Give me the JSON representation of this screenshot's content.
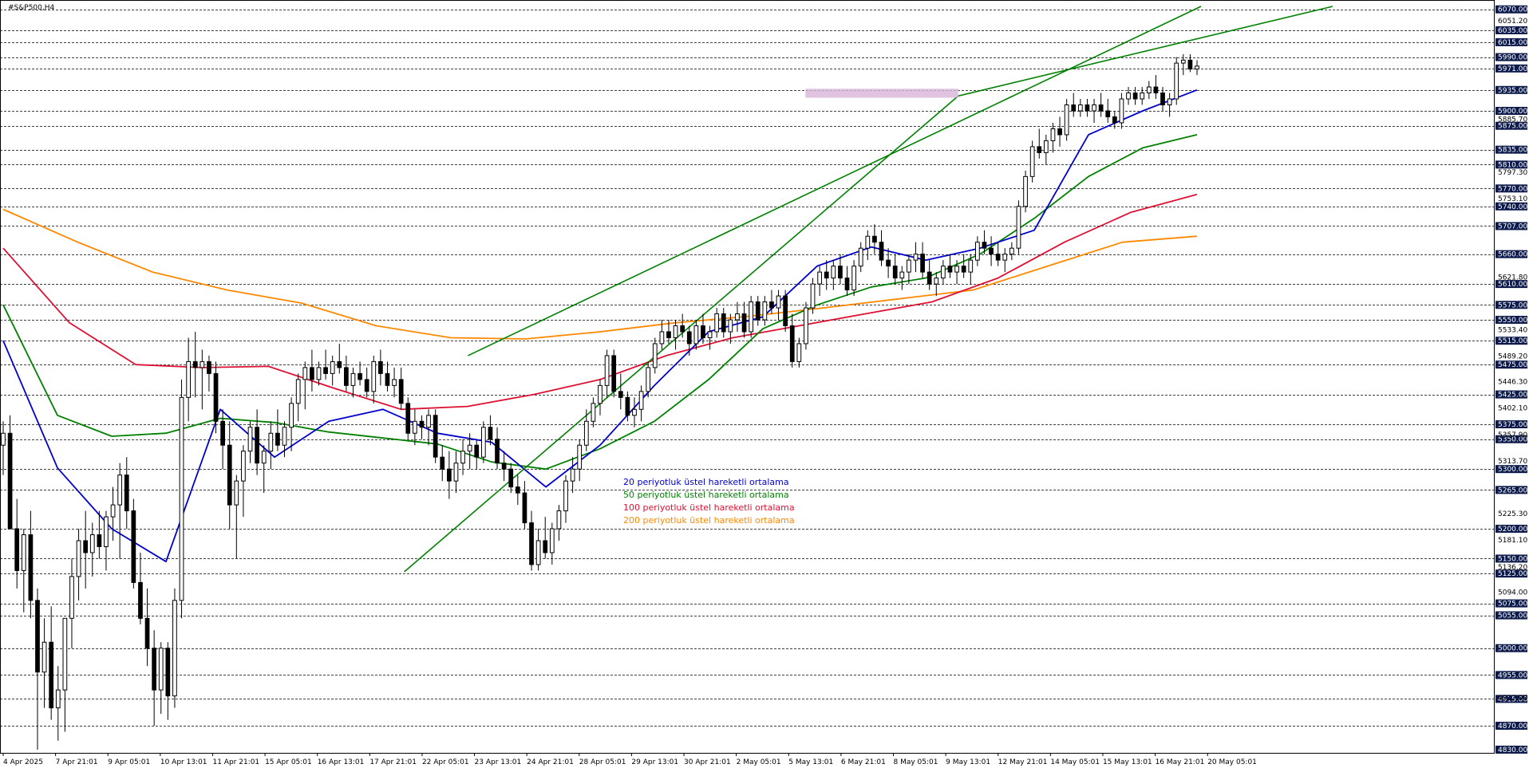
{
  "window": {
    "symbol_title": "#S&P500,H4"
  },
  "colors": {
    "background": "#ffffff",
    "grid": "#000000",
    "candle_up": "#ffffff",
    "candle_down": "#000000",
    "ema20": "#0000cc",
    "ema50": "#008000",
    "ema100": "#dd1133",
    "ema200": "#ff8800",
    "channel": "#008000",
    "zone": "#d8b4d8",
    "price_label_bg": "#0b1a4a",
    "price_label_text": "#ffffff"
  },
  "chart_data": {
    "type": "candlestick",
    "title": "#S&P500,H4",
    "ylim": [
      4830,
      6075
    ],
    "grid": true,
    "x_tick_labels": [
      "4 Apr 2025",
      "7 Apr 21:01",
      "9 Apr 05:01",
      "10 Apr 13:01",
      "11 Apr 21:01",
      "15 Apr 05:01",
      "16 Apr 13:01",
      "17 Apr 21:01",
      "22 Apr 05:01",
      "23 Apr 13:01",
      "24 Apr 21:01",
      "28 Apr 05:01",
      "29 Apr 13:01",
      "30 Apr 21:01",
      "2 May 05:01",
      "5 May 13:01",
      "6 May 21:01",
      "8 May 05:01",
      "9 May 13:01",
      "12 May 21:01",
      "14 May 05:01",
      "15 May 13:01",
      "16 May 21:01",
      "20 May 05:01"
    ],
    "y_tick_labels": [
      "6070.00",
      "6035.00",
      "6015.00",
      "5990.00",
      "5935.00",
      "5900.00",
      "5875.00",
      "5835.00",
      "5810.00",
      "5770.00",
      "5740.00",
      "5707.00",
      "5660.00",
      "5610.00",
      "5575.00",
      "5550.00",
      "5515.00",
      "5475.00",
      "5425.00",
      "5375.00",
      "5350.00",
      "5300.00",
      "5265.00",
      "5200.00",
      "5150.00",
      "5125.00",
      "5075.00",
      "5055.00",
      "5000.00",
      "4955.00",
      "4915.00",
      "4870.00",
      "4830.00"
    ],
    "highlighted_price_labels": [
      "6070.00",
      "6035.00",
      "6015.00",
      "5990.00",
      "5971.00",
      "5935.00",
      "5900.00",
      "5875.00",
      "5835.00",
      "5810.00",
      "5770.00",
      "5740.00",
      "5707.00",
      "5660.00",
      "5610.00",
      "5575.00",
      "5550.00",
      "5515.00",
      "5475.00",
      "5425.00",
      "5375.00",
      "5350.00",
      "5300.00",
      "5265.00",
      "5200.00",
      "5150.00",
      "5125.00",
      "5075.00",
      "5055.00",
      "5000.00",
      "4955.00",
      "4915.00",
      "4870.00",
      "4830.00"
    ],
    "plain_price_labels": [
      "6051.20",
      "5885.70",
      "5797.30",
      "5753.10",
      "5621.80",
      "5533.40",
      "5489.20",
      "5446.30",
      "5402.10",
      "5357.90",
      "5313.70",
      "5225.30",
      "5181.10",
      "5136.20",
      "5094.00",
      "4917.00"
    ],
    "current_price": 5971.0,
    "support_levels": [
      6070,
      6035,
      6015,
      5990,
      5971,
      5935,
      5900,
      5875,
      5835,
      5810,
      5770,
      5740,
      5707,
      5660,
      5610,
      5575,
      5550,
      5515,
      5475,
      5425,
      5375,
      5350,
      5300,
      5265,
      5200,
      5150,
      5125,
      5075,
      5055,
      5000,
      4955,
      4915,
      4870
    ],
    "resistance_zone": [
      5922,
      5937
    ],
    "legend": [
      {
        "label": "20 periyotluk üstel hareketli ortalama",
        "color": "#0000cc"
      },
      {
        "label": "50 periyotluk üstel hareketli ortalama",
        "color": "#008000"
      },
      {
        "label": "100 periyotluk üstel hareketli ortalama",
        "color": "#dd1133"
      },
      {
        "label": "200 periyotluk üstel hareketli ortalama",
        "color": "#ff8800"
      }
    ],
    "channel": {
      "lower_start": {
        "bar": 126,
        "price": 5128
      },
      "lower_end": {
        "bar": 376,
        "price": 6075
      },
      "upper_start": {
        "bar": 146,
        "price": 5490
      },
      "upper_end": {
        "bar": 376,
        "price": 6070
      }
    },
    "ema20": [
      5515,
      5302,
      5200,
      5145,
      5400,
      5320,
      5380,
      5400,
      5360,
      5345,
      5270,
      5340,
      5440,
      5530,
      5555,
      5640,
      5672,
      5650,
      5670,
      5700,
      5860,
      5900,
      5935
    ],
    "ema50": [
      5575,
      5390,
      5355,
      5360,
      5385,
      5378,
      5362,
      5352,
      5342,
      5312,
      5300,
      5334,
      5380,
      5450,
      5535,
      5575,
      5605,
      5620,
      5660,
      5720,
      5790,
      5838,
      5860
    ],
    "ema100": [
      5670,
      5545,
      5475,
      5470,
      5472,
      5435,
      5400,
      5405,
      5425,
      5450,
      5490,
      5520,
      5540,
      5560,
      5580,
      5620,
      5680,
      5730,
      5760
    ],
    "ema200": [
      5735,
      5680,
      5630,
      5600,
      5578,
      5540,
      5520,
      5518,
      5530,
      5545,
      5556,
      5570,
      5585,
      5600,
      5640,
      5680,
      5690
    ],
    "candles": [
      [
        5340,
        5380,
        5290,
        5360
      ],
      [
        5360,
        5390,
        5200,
        5200
      ],
      [
        5200,
        5250,
        5100,
        5130
      ],
      [
        5130,
        5200,
        5060,
        5190
      ],
      [
        5190,
        5230,
        5050,
        5080
      ],
      [
        5080,
        5100,
        4830,
        4960
      ],
      [
        4960,
        5050,
        4900,
        5010
      ],
      [
        5010,
        5070,
        4880,
        4900
      ],
      [
        4900,
        4970,
        4845,
        4930
      ],
      [
        4930,
        5050,
        4860,
        5050
      ],
      [
        5050,
        5150,
        5000,
        5120
      ],
      [
        5120,
        5200,
        5080,
        5180
      ],
      [
        5180,
        5230,
        5100,
        5160
      ],
      [
        5160,
        5210,
        5120,
        5190
      ],
      [
        5190,
        5230,
        5150,
        5170
      ],
      [
        5170,
        5230,
        5130,
        5220
      ],
      [
        5220,
        5270,
        5180,
        5240
      ],
      [
        5240,
        5310,
        5150,
        5290
      ],
      [
        5290,
        5320,
        5200,
        5230
      ],
      [
        5230,
        5250,
        5100,
        5110
      ],
      [
        5110,
        5160,
        5040,
        5050
      ],
      [
        5050,
        5100,
        4970,
        5000
      ],
      [
        5000,
        5030,
        4870,
        4930
      ],
      [
        4930,
        5010,
        4890,
        5000
      ],
      [
        5000,
        5010,
        4880,
        4920
      ],
      [
        4920,
        5100,
        4900,
        5080
      ],
      [
        5080,
        5450,
        5050,
        5420
      ],
      [
        5420,
        5520,
        5380,
        5480
      ],
      [
        5480,
        5530,
        5420,
        5470
      ],
      [
        5470,
        5500,
        5400,
        5480
      ],
      [
        5480,
        5490,
        5430,
        5460
      ],
      [
        5460,
        5480,
        5360,
        5380
      ],
      [
        5380,
        5400,
        5300,
        5340
      ],
      [
        5340,
        5380,
        5200,
        5240
      ],
      [
        5240,
        5290,
        5150,
        5280
      ],
      [
        5280,
        5340,
        5220,
        5330
      ],
      [
        5330,
        5380,
        5310,
        5370
      ],
      [
        5370,
        5400,
        5290,
        5310
      ],
      [
        5310,
        5340,
        5260,
        5330
      ],
      [
        5330,
        5380,
        5300,
        5360
      ],
      [
        5360,
        5400,
        5330,
        5340
      ],
      [
        5340,
        5380,
        5320,
        5370
      ],
      [
        5370,
        5420,
        5330,
        5410
      ],
      [
        5410,
        5460,
        5380,
        5450
      ],
      [
        5450,
        5480,
        5400,
        5470
      ],
      [
        5470,
        5500,
        5430,
        5450
      ],
      [
        5450,
        5480,
        5440,
        5470
      ],
      [
        5470,
        5500,
        5450,
        5460
      ],
      [
        5460,
        5490,
        5440,
        5480
      ],
      [
        5480,
        5510,
        5460,
        5470
      ],
      [
        5470,
        5490,
        5430,
        5440
      ],
      [
        5440,
        5470,
        5420,
        5460
      ],
      [
        5460,
        5480,
        5440,
        5450
      ],
      [
        5450,
        5470,
        5420,
        5430
      ],
      [
        5430,
        5490,
        5410,
        5480
      ],
      [
        5480,
        5500,
        5440,
        5460
      ],
      [
        5460,
        5480,
        5430,
        5440
      ],
      [
        5440,
        5470,
        5420,
        5450
      ],
      [
        5450,
        5470,
        5400,
        5410
      ],
      [
        5410,
        5420,
        5350,
        5360
      ],
      [
        5360,
        5400,
        5340,
        5380
      ],
      [
        5380,
        5390,
        5350,
        5370
      ],
      [
        5370,
        5400,
        5340,
        5390
      ],
      [
        5390,
        5400,
        5310,
        5320
      ],
      [
        5320,
        5340,
        5280,
        5300
      ],
      [
        5300,
        5330,
        5250,
        5280
      ],
      [
        5280,
        5330,
        5260,
        5310
      ],
      [
        5310,
        5350,
        5290,
        5330
      ],
      [
        5330,
        5360,
        5300,
        5340
      ],
      [
        5340,
        5350,
        5300,
        5320
      ],
      [
        5320,
        5380,
        5310,
        5370
      ],
      [
        5370,
        5390,
        5340,
        5350
      ],
      [
        5350,
        5370,
        5300,
        5310
      ],
      [
        5310,
        5330,
        5280,
        5300
      ],
      [
        5300,
        5310,
        5260,
        5270
      ],
      [
        5270,
        5290,
        5240,
        5260
      ],
      [
        5260,
        5280,
        5200,
        5210
      ],
      [
        5210,
        5230,
        5130,
        5140
      ],
      [
        5140,
        5200,
        5130,
        5180
      ],
      [
        5180,
        5220,
        5150,
        5160
      ],
      [
        5160,
        5210,
        5140,
        5200
      ],
      [
        5200,
        5240,
        5180,
        5230
      ],
      [
        5230,
        5290,
        5210,
        5280
      ],
      [
        5280,
        5320,
        5260,
        5300
      ],
      [
        5300,
        5350,
        5280,
        5340
      ],
      [
        5340,
        5400,
        5330,
        5380
      ],
      [
        5380,
        5420,
        5370,
        5410
      ],
      [
        5410,
        5450,
        5390,
        5440
      ],
      [
        5440,
        5500,
        5420,
        5490
      ],
      [
        5490,
        5500,
        5420,
        5430
      ],
      [
        5430,
        5460,
        5400,
        5420
      ],
      [
        5420,
        5430,
        5380,
        5390
      ],
      [
        5390,
        5420,
        5370,
        5400
      ],
      [
        5400,
        5440,
        5380,
        5430
      ],
      [
        5430,
        5480,
        5420,
        5470
      ],
      [
        5470,
        5520,
        5460,
        5510
      ],
      [
        5510,
        5550,
        5500,
        5530
      ],
      [
        5530,
        5550,
        5510,
        5520
      ],
      [
        5520,
        5550,
        5500,
        5540
      ],
      [
        5540,
        5560,
        5520,
        5530
      ],
      [
        5530,
        5540,
        5490,
        5510
      ],
      [
        5510,
        5550,
        5500,
        5540
      ],
      [
        5540,
        5560,
        5510,
        5520
      ],
      [
        5520,
        5540,
        5500,
        5530
      ],
      [
        5530,
        5570,
        5520,
        5560
      ],
      [
        5560,
        5570,
        5520,
        5530
      ],
      [
        5530,
        5560,
        5510,
        5550
      ],
      [
        5550,
        5580,
        5530,
        5560
      ],
      [
        5560,
        5580,
        5520,
        5530
      ],
      [
        5530,
        5590,
        5520,
        5580
      ],
      [
        5580,
        5590,
        5540,
        5550
      ],
      [
        5550,
        5590,
        5540,
        5580
      ],
      [
        5580,
        5600,
        5560,
        5570
      ],
      [
        5570,
        5600,
        5550,
        5590
      ],
      [
        5590,
        5600,
        5530,
        5540
      ],
      [
        5540,
        5560,
        5470,
        5480
      ],
      [
        5480,
        5520,
        5470,
        5510
      ],
      [
        5510,
        5580,
        5500,
        5570
      ],
      [
        5570,
        5620,
        5560,
        5610
      ],
      [
        5610,
        5640,
        5590,
        5630
      ],
      [
        5630,
        5650,
        5600,
        5620
      ],
      [
        5620,
        5650,
        5600,
        5640
      ],
      [
        5640,
        5660,
        5610,
        5620
      ],
      [
        5620,
        5640,
        5590,
        5600
      ],
      [
        5600,
        5650,
        5590,
        5640
      ],
      [
        5640,
        5680,
        5630,
        5670
      ],
      [
        5670,
        5700,
        5650,
        5690
      ],
      [
        5690,
        5710,
        5660,
        5680
      ],
      [
        5680,
        5700,
        5640,
        5650
      ],
      [
        5650,
        5670,
        5620,
        5640
      ],
      [
        5640,
        5660,
        5610,
        5620
      ],
      [
        5620,
        5640,
        5600,
        5630
      ],
      [
        5630,
        5660,
        5610,
        5650
      ],
      [
        5650,
        5680,
        5630,
        5660
      ],
      [
        5660,
        5680,
        5620,
        5630
      ],
      [
        5630,
        5650,
        5600,
        5610
      ],
      [
        5610,
        5630,
        5590,
        5620
      ],
      [
        5620,
        5650,
        5610,
        5640
      ],
      [
        5640,
        5660,
        5620,
        5630
      ],
      [
        5630,
        5650,
        5610,
        5640
      ],
      [
        5640,
        5660,
        5620,
        5630
      ],
      [
        5630,
        5660,
        5610,
        5650
      ],
      [
        5650,
        5690,
        5640,
        5680
      ],
      [
        5680,
        5700,
        5660,
        5670
      ],
      [
        5670,
        5690,
        5640,
        5660
      ],
      [
        5660,
        5680,
        5640,
        5650
      ],
      [
        5650,
        5670,
        5630,
        5660
      ],
      [
        5660,
        5680,
        5650,
        5670
      ],
      [
        5670,
        5750,
        5660,
        5740
      ],
      [
        5740,
        5800,
        5730,
        5790
      ],
      [
        5790,
        5850,
        5780,
        5840
      ],
      [
        5840,
        5870,
        5820,
        5830
      ],
      [
        5830,
        5860,
        5810,
        5850
      ],
      [
        5850,
        5880,
        5830,
        5870
      ],
      [
        5870,
        5890,
        5840,
        5860
      ],
      [
        5860,
        5920,
        5850,
        5910
      ],
      [
        5910,
        5930,
        5890,
        5900
      ],
      [
        5900,
        5920,
        5890,
        5910
      ],
      [
        5910,
        5920,
        5890,
        5900
      ],
      [
        5900,
        5920,
        5880,
        5910
      ],
      [
        5910,
        5930,
        5890,
        5900
      ],
      [
        5900,
        5920,
        5880,
        5890
      ],
      [
        5890,
        5900,
        5870,
        5880
      ],
      [
        5880,
        5930,
        5870,
        5920
      ],
      [
        5920,
        5940,
        5910,
        5930
      ],
      [
        5930,
        5940,
        5910,
        5920
      ],
      [
        5920,
        5940,
        5910,
        5930
      ],
      [
        5930,
        5950,
        5920,
        5940
      ],
      [
        5940,
        5960,
        5920,
        5930
      ],
      [
        5930,
        5940,
        5900,
        5910
      ],
      [
        5910,
        5930,
        5890,
        5920
      ],
      [
        5920,
        5990,
        5910,
        5980
      ],
      [
        5980,
        5995,
        5960,
        5985
      ],
      [
        5985,
        5995,
        5965,
        5970
      ],
      [
        5970,
        5985,
        5960,
        5975
      ]
    ]
  }
}
